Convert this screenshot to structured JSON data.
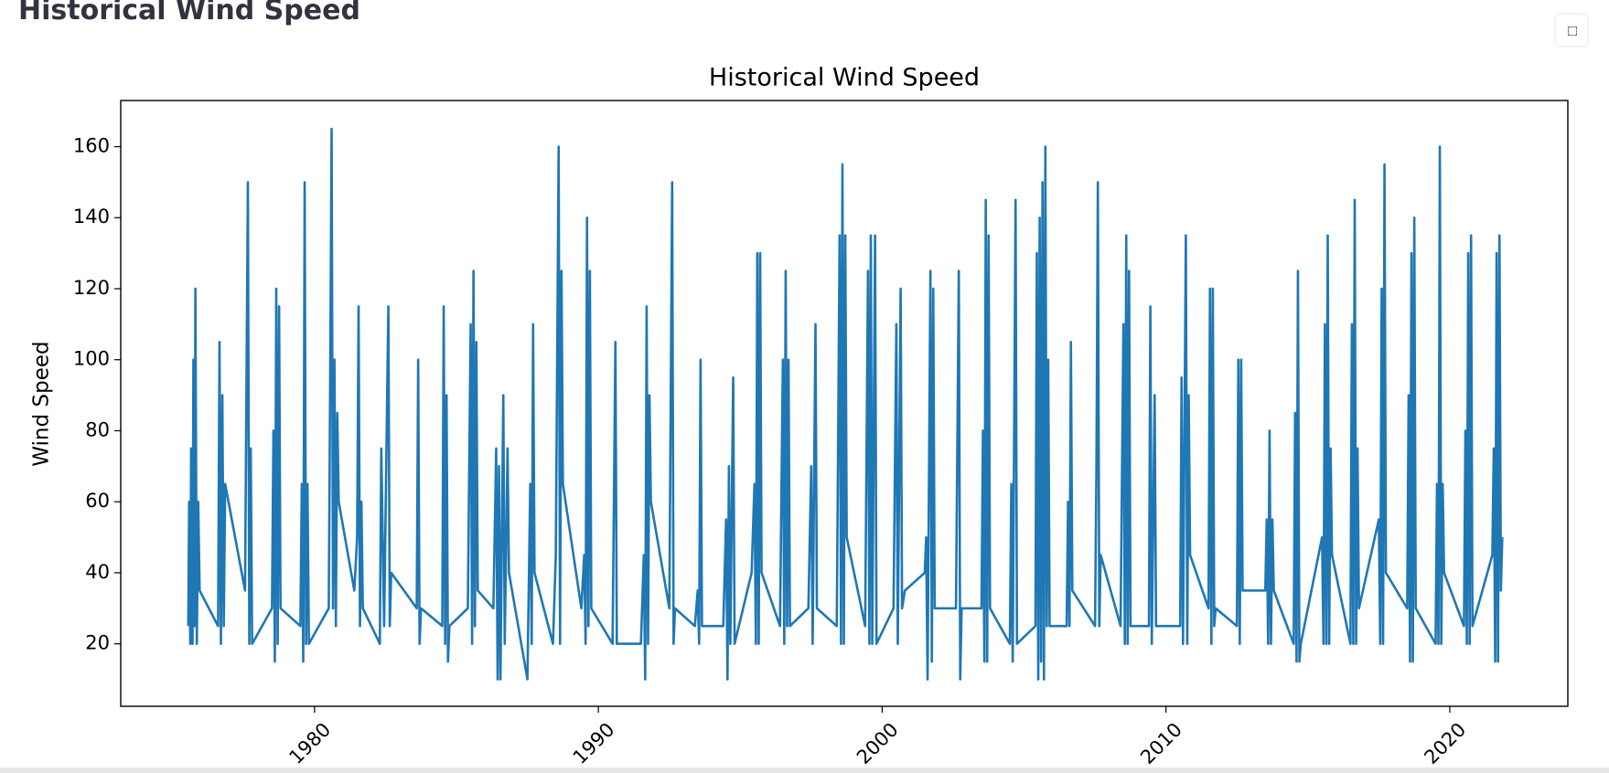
{
  "page_title": "Historical Wind Speed",
  "chart_data": {
    "type": "line",
    "title": "Historical Wind Speed",
    "y_label": "Wind Speed",
    "color": "#1f77b4",
    "grid": false,
    "xlim": [
      1973.17,
      2024.16
    ],
    "xticks": [
      1980,
      1990,
      2000,
      2010,
      2020
    ],
    "ylim": [
      2.4,
      173
    ],
    "yticks": [
      20,
      40,
      60,
      80,
      100,
      120,
      140,
      160
    ],
    "x": [
      1975.55,
      1975.58,
      1975.62,
      1975.65,
      1975.7,
      1975.73,
      1975.77,
      1975.8,
      1975.85,
      1975.9,
      1975.95,
      1976.6,
      1976.65,
      1976.7,
      1976.75,
      1976.8,
      1976.85,
      1977.55,
      1977.65,
      1977.7,
      1977.75,
      1977.8,
      1978.5,
      1978.55,
      1978.6,
      1978.65,
      1978.7,
      1978.75,
      1978.8,
      1979.5,
      1979.55,
      1979.6,
      1979.65,
      1979.7,
      1979.75,
      1979.8,
      1980.5,
      1980.55,
      1980.6,
      1980.65,
      1980.7,
      1980.75,
      1980.8,
      1980.85,
      1981.4,
      1981.5,
      1981.55,
      1981.6,
      1981.65,
      1981.7,
      1982.3,
      1982.35,
      1982.45,
      1982.6,
      1982.65,
      1982.7,
      1983.6,
      1983.65,
      1983.7,
      1983.75,
      1984.5,
      1984.55,
      1984.6,
      1984.65,
      1984.7,
      1984.75,
      1985.4,
      1985.5,
      1985.55,
      1985.6,
      1985.65,
      1985.7,
      1985.75,
      1986.3,
      1986.4,
      1986.45,
      1986.5,
      1986.55,
      1986.65,
      1986.7,
      1986.8,
      1986.85,
      1987.5,
      1987.6,
      1987.65,
      1987.7,
      1987.75,
      1988.4,
      1988.5,
      1988.6,
      1988.65,
      1988.7,
      1988.75,
      1989.4,
      1989.5,
      1989.55,
      1989.6,
      1989.65,
      1989.7,
      1989.75,
      1990.5,
      1990.6,
      1990.65,
      1990.7,
      1991.5,
      1991.6,
      1991.65,
      1991.7,
      1991.75,
      1991.8,
      1991.85,
      1992.5,
      1992.6,
      1992.65,
      1992.7,
      1993.4,
      1993.5,
      1993.55,
      1993.6,
      1993.65,
      1994.4,
      1994.5,
      1994.55,
      1994.6,
      1994.65,
      1994.75,
      1994.8,
      1995.4,
      1995.5,
      1995.55,
      1995.6,
      1995.65,
      1995.7,
      1995.75,
      1996.4,
      1996.5,
      1996.55,
      1996.6,
      1996.65,
      1996.7,
      1996.75,
      1997.4,
      1997.5,
      1997.55,
      1997.65,
      1997.7,
      1998.4,
      1998.5,
      1998.55,
      1998.6,
      1998.65,
      1998.7,
      1998.75,
      1999.4,
      1999.5,
      1999.55,
      1999.6,
      1999.65,
      1999.75,
      1999.8,
      2000.4,
      2000.5,
      2000.55,
      2000.65,
      2000.7,
      2000.8,
      2001.5,
      2001.55,
      2001.6,
      2001.7,
      2001.75,
      2001.8,
      2001.85,
      2002.6,
      2002.7,
      2002.75,
      2002.8,
      2003.5,
      2003.55,
      2003.6,
      2003.65,
      2003.7,
      2003.75,
      2003.8,
      2004.5,
      2004.55,
      2004.6,
      2004.7,
      2004.75,
      2005.4,
      2005.45,
      2005.5,
      2005.55,
      2005.6,
      2005.65,
      2005.7,
      2005.75,
      2005.8,
      2005.85,
      2005.9,
      2006.5,
      2006.55,
      2006.6,
      2006.65,
      2006.7,
      2007.5,
      2007.55,
      2007.6,
      2007.65,
      2007.7,
      2008.4,
      2008.5,
      2008.55,
      2008.6,
      2008.65,
      2008.7,
      2008.75,
      2009.4,
      2009.45,
      2009.5,
      2009.6,
      2009.65,
      2010.5,
      2010.55,
      2010.6,
      2010.7,
      2010.75,
      2010.8,
      2010.85,
      2011.5,
      2011.55,
      2011.6,
      2011.65,
      2011.7,
      2011.75,
      2012.5,
      2012.55,
      2012.6,
      2012.65,
      2012.7,
      2013.5,
      2013.55,
      2013.6,
      2013.65,
      2013.7,
      2013.75,
      2013.8,
      2014.5,
      2014.55,
      2014.6,
      2014.65,
      2014.7,
      2014.75,
      2015.5,
      2015.55,
      2015.6,
      2015.65,
      2015.7,
      2015.75,
      2015.8,
      2015.85,
      2016.5,
      2016.55,
      2016.6,
      2016.65,
      2016.7,
      2016.75,
      2016.8,
      2017.5,
      2017.55,
      2017.6,
      2017.65,
      2017.7,
      2017.75,
      2018.5,
      2018.55,
      2018.6,
      2018.65,
      2018.7,
      2018.75,
      2018.8,
      2019.5,
      2019.55,
      2019.6,
      2019.65,
      2019.7,
      2019.75,
      2019.8,
      2020.5,
      2020.55,
      2020.6,
      2020.65,
      2020.7,
      2020.75,
      2020.8,
      2021.5,
      2021.55,
      2021.6,
      2021.65,
      2021.7,
      2021.75,
      2021.8,
      2021.85
    ],
    "values": [
      25,
      60,
      20,
      75,
      20,
      100,
      25,
      120,
      20,
      60,
      35,
      25,
      105,
      20,
      90,
      25,
      65,
      35,
      150,
      20,
      75,
      20,
      30,
      80,
      15,
      120,
      20,
      115,
      30,
      25,
      65,
      15,
      150,
      20,
      65,
      20,
      30,
      95,
      165,
      30,
      100,
      25,
      85,
      60,
      35,
      50,
      115,
      25,
      60,
      30,
      20,
      75,
      25,
      115,
      25,
      40,
      30,
      100,
      20,
      30,
      25,
      115,
      20,
      90,
      15,
      25,
      30,
      110,
      20,
      125,
      25,
      105,
      35,
      30,
      75,
      10,
      70,
      10,
      90,
      20,
      75,
      40,
      10,
      65,
      20,
      110,
      40,
      20,
      45,
      160,
      20,
      125,
      65,
      30,
      45,
      20,
      140,
      25,
      125,
      30,
      20,
      105,
      20,
      20,
      20,
      45,
      10,
      115,
      20,
      90,
      60,
      30,
      150,
      20,
      30,
      25,
      35,
      20,
      100,
      25,
      25,
      55,
      10,
      70,
      20,
      95,
      20,
      40,
      65,
      20,
      130,
      20,
      130,
      40,
      25,
      100,
      20,
      125,
      25,
      100,
      25,
      30,
      70,
      20,
      110,
      30,
      25,
      135,
      20,
      155,
      20,
      135,
      50,
      25,
      125,
      20,
      135,
      20,
      135,
      20,
      30,
      110,
      20,
      120,
      30,
      35,
      40,
      50,
      10,
      125,
      15,
      120,
      30,
      30,
      125,
      10,
      30,
      30,
      80,
      15,
      145,
      15,
      135,
      30,
      20,
      65,
      15,
      145,
      20,
      25,
      130,
      10,
      140,
      15,
      150,
      10,
      160,
      25,
      100,
      25,
      25,
      60,
      25,
      105,
      35,
      25,
      70,
      150,
      25,
      45,
      25,
      110,
      20,
      135,
      20,
      125,
      25,
      25,
      115,
      20,
      90,
      25,
      25,
      95,
      20,
      135,
      20,
      90,
      45,
      30,
      120,
      20,
      120,
      25,
      30,
      25,
      100,
      20,
      100,
      35,
      35,
      55,
      20,
      80,
      20,
      55,
      35,
      20,
      85,
      15,
      125,
      15,
      20,
      50,
      20,
      110,
      20,
      135,
      20,
      75,
      45,
      20,
      110,
      20,
      145,
      20,
      75,
      30,
      55,
      20,
      120,
      20,
      155,
      40,
      30,
      90,
      15,
      130,
      15,
      140,
      30,
      20,
      65,
      20,
      160,
      20,
      65,
      40,
      25,
      80,
      20,
      130,
      20,
      135,
      25,
      45,
      75,
      15,
      130,
      15,
      135,
      35,
      50
    ]
  }
}
